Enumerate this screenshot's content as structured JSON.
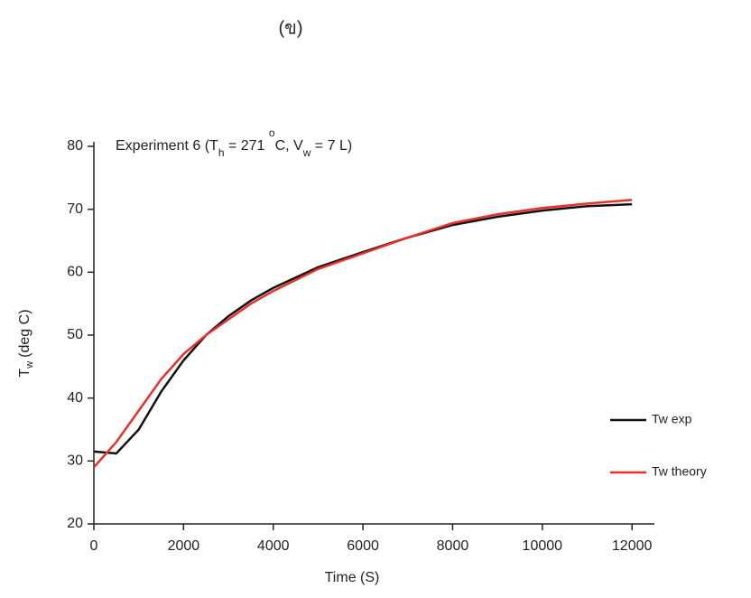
{
  "chart_data": {
    "type": "line",
    "title": "(ข)",
    "annotation": {
      "parts": [
        "Experiment 6 (T",
        "h",
        " = 271 ",
        "o",
        "C, V",
        "w",
        " = 7 L)"
      ]
    },
    "xlabel": "Time (S)",
    "ylabel": {
      "symbol": "T",
      "subscript": "w",
      "unit": "(deg C)"
    },
    "x": [
      0,
      500,
      1000,
      1500,
      2000,
      2500,
      3000,
      3500,
      4000,
      5000,
      6000,
      7000,
      8000,
      9000,
      10000,
      11000,
      12000
    ],
    "series": [
      {
        "name": "Tw exp",
        "color": "#111111",
        "values": [
          31.5,
          31.2,
          35,
          41,
          46,
          50,
          53,
          55.5,
          57.5,
          60.8,
          63.2,
          65.5,
          67.5,
          68.8,
          69.8,
          70.5,
          70.8
        ]
      },
      {
        "name": "Tw theory",
        "color": "#e8302a",
        "values": [
          29,
          33,
          38,
          43,
          47,
          50,
          52.5,
          55,
          57,
          60.5,
          63,
          65.5,
          67.8,
          69.2,
          70.2,
          70.9,
          71.5
        ]
      }
    ],
    "xlim": [
      0,
      12500
    ],
    "xticks": [
      0,
      2000,
      4000,
      6000,
      8000,
      10000,
      12000
    ],
    "ylim": [
      20,
      80
    ],
    "yticks": [
      20,
      30,
      40,
      50,
      60,
      70,
      80
    ],
    "legend": "right"
  }
}
